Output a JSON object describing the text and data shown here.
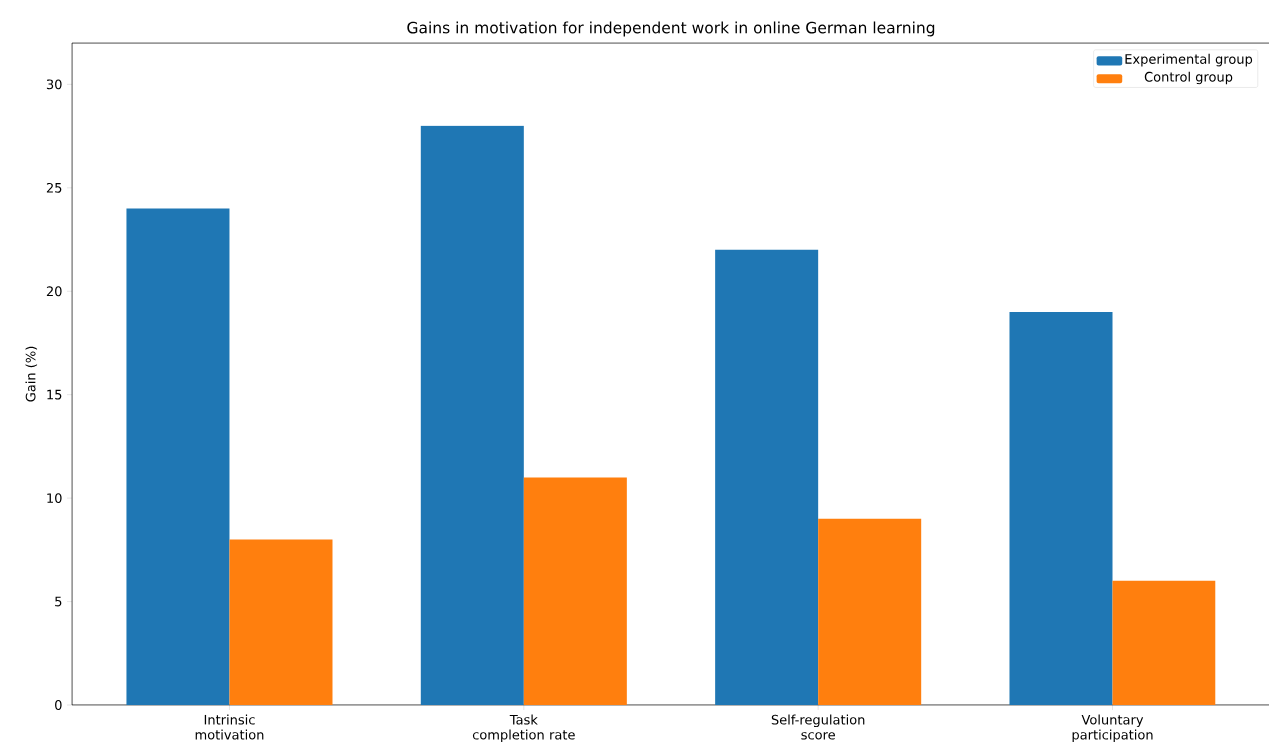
{
  "chart_data": {
    "type": "bar",
    "title": "Gains in motivation for independent work in online German learning",
    "ylabel": "Gain (%)",
    "categories": [
      "Intrinsic motivation",
      "Task completion rate",
      "Self-regulation score",
      "Voluntary participation"
    ],
    "series": [
      {
        "name": "Experimental group",
        "color": "#1f77b4",
        "values": [
          24,
          28,
          22,
          19
        ]
      },
      {
        "name": "Control group",
        "color": "#ff7f0e",
        "values": [
          8,
          11,
          9,
          6
        ]
      }
    ],
    "ylim": [
      0,
      32
    ],
    "yticks": [
      0,
      5,
      10,
      15,
      20,
      25,
      30
    ],
    "grid": false,
    "legend": "top right"
  }
}
